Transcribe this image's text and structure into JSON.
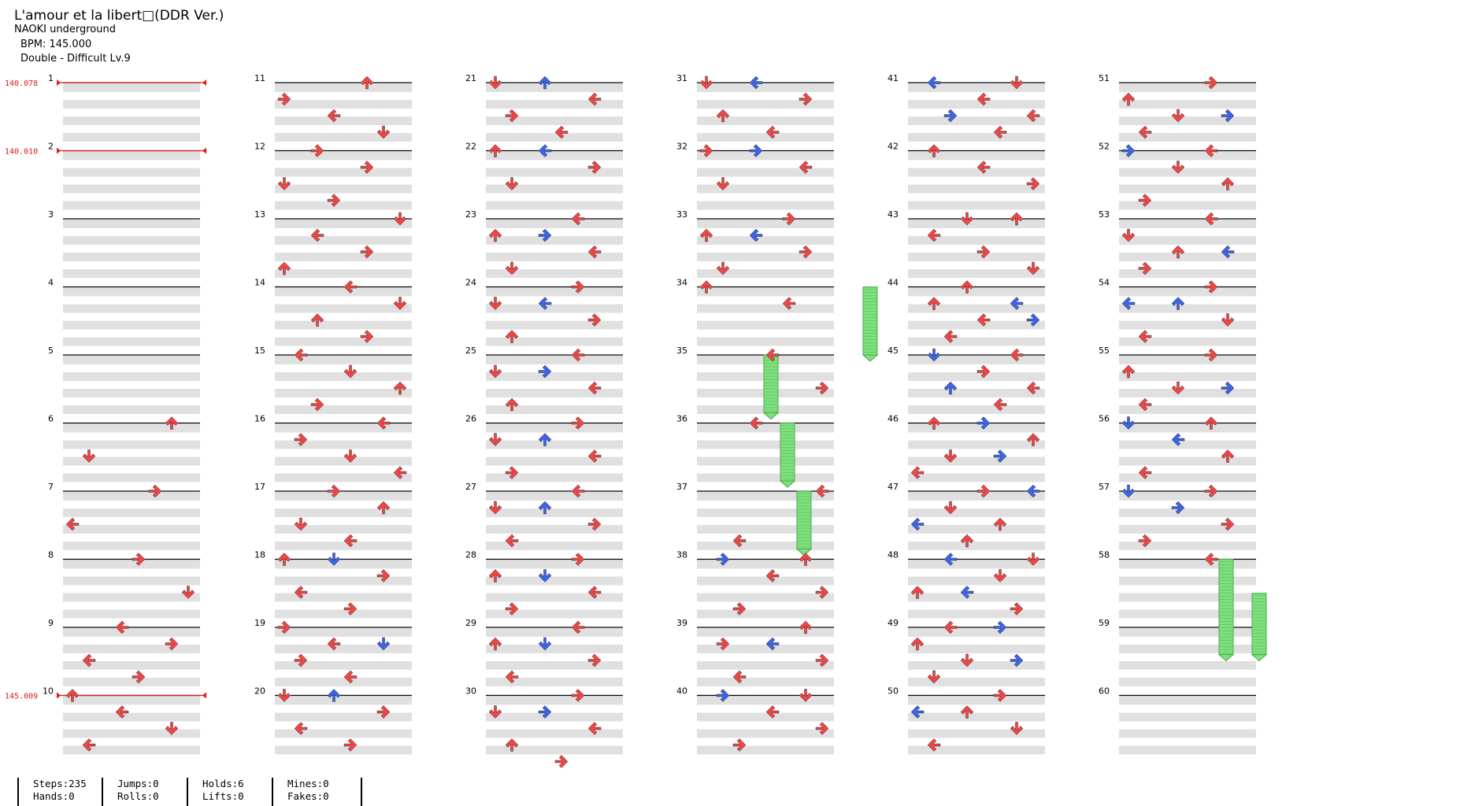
{
  "header": {
    "title": "L'amour et la libert□(DDR Ver.)",
    "artist": "NAOKI underground",
    "bpm_line": "BPM: 145.000",
    "chart_line": "Double - Difficult  Lv.9"
  },
  "bpm_changes": [
    {
      "measure": 1,
      "label": "140.078"
    },
    {
      "measure": 2,
      "label": "140.010"
    },
    {
      "measure": 10,
      "label": "145.009"
    }
  ],
  "measures": [
    1,
    2,
    3,
    4,
    5,
    6,
    7,
    8,
    9,
    10,
    11,
    12,
    13,
    14,
    15,
    16,
    17,
    18,
    19,
    20,
    21,
    22,
    23,
    24,
    25,
    26,
    27,
    28,
    29,
    30,
    31,
    32,
    33,
    34,
    35,
    36,
    37,
    38,
    39,
    40,
    41,
    42,
    43,
    44,
    45,
    46,
    47,
    48,
    49,
    50,
    51,
    52,
    53,
    54,
    55,
    56,
    57,
    58,
    59,
    60
  ],
  "colors": {
    "quarter": "#f04545",
    "eighth": "#3c64e6",
    "hold": "#7fe07f",
    "bpm": "#e01818"
  },
  "notes": [
    [
      6,
      0,
      "U",
      "r"
    ],
    [
      6,
      2,
      "D",
      "r"
    ],
    [
      7,
      0,
      "R",
      "r"
    ],
    [
      7,
      2,
      "L",
      "r"
    ],
    [
      8,
      0,
      "R",
      "r"
    ],
    [
      8,
      2,
      "D",
      "r"
    ],
    [
      9,
      0,
      "L",
      "r"
    ],
    [
      9,
      1,
      "R",
      "r"
    ],
    [
      9,
      2,
      "L",
      "r"
    ],
    [
      9,
      3,
      "R",
      "r"
    ],
    [
      10,
      0,
      "U",
      "r"
    ],
    [
      10,
      1,
      "L",
      "r"
    ],
    [
      10,
      2,
      "D",
      "r"
    ],
    [
      10,
      3,
      "L",
      "r"
    ],
    [
      11,
      0,
      "U",
      "r"
    ],
    [
      11,
      1,
      "R",
      "r"
    ],
    [
      11,
      2,
      "L",
      "r"
    ],
    [
      11,
      3,
      "D",
      "r"
    ],
    [
      12,
      0,
      "R",
      "r"
    ],
    [
      12,
      1,
      "R",
      "r"
    ],
    [
      12,
      2,
      "D",
      "r"
    ],
    [
      12,
      3,
      "R",
      "r"
    ],
    [
      13,
      0,
      "D",
      "r"
    ],
    [
      13,
      1,
      "L",
      "r"
    ],
    [
      13,
      2,
      "R",
      "r"
    ],
    [
      13,
      3,
      "U",
      "r"
    ],
    [
      14,
      0,
      "L",
      "r"
    ],
    [
      14,
      1,
      "D",
      "r"
    ],
    [
      14,
      2,
      "U",
      "r"
    ],
    [
      14,
      3,
      "R",
      "r"
    ],
    [
      15,
      0,
      "L",
      "r"
    ],
    [
      15,
      1,
      "D",
      "r"
    ],
    [
      15,
      2,
      "U",
      "r"
    ],
    [
      15,
      3,
      "R",
      "r"
    ],
    [
      16,
      0,
      "L",
      "r"
    ],
    [
      16,
      1,
      "R",
      "r"
    ],
    [
      16,
      2,
      "D",
      "r"
    ],
    [
      16,
      3,
      "L",
      "r"
    ],
    [
      17,
      0,
      "R",
      "r"
    ],
    [
      17,
      1,
      "U",
      "r"
    ],
    [
      17,
      2,
      "D",
      "r"
    ],
    [
      17,
      3,
      "L",
      "r"
    ],
    [
      18,
      0,
      "U",
      "r"
    ],
    [
      18,
      0,
      "D",
      "b"
    ],
    [
      18,
      1,
      "R",
      "r"
    ],
    [
      18,
      2,
      "L",
      "r"
    ],
    [
      18,
      3,
      "R",
      "r"
    ],
    [
      19,
      0,
      "R",
      "r"
    ],
    [
      19,
      1,
      "L",
      "r"
    ],
    [
      19,
      1,
      "D",
      "b"
    ],
    [
      19,
      2,
      "R",
      "r"
    ],
    [
      19,
      3,
      "L",
      "r"
    ],
    [
      20,
      0,
      "D",
      "r"
    ],
    [
      20,
      0,
      "U",
      "b"
    ],
    [
      20,
      1,
      "R",
      "r"
    ],
    [
      20,
      2,
      "L",
      "r"
    ],
    [
      20,
      3,
      "R",
      "r"
    ],
    [
      21,
      0,
      "D",
      "r"
    ],
    [
      21,
      0,
      "U",
      "b"
    ],
    [
      21,
      1,
      "L",
      "r"
    ],
    [
      21,
      2,
      "R",
      "r"
    ],
    [
      21,
      3,
      "L",
      "r"
    ],
    [
      22,
      0,
      "U",
      "r"
    ],
    [
      22,
      0,
      "L",
      "b"
    ],
    [
      22,
      1,
      "R",
      "r"
    ],
    [
      22,
      2,
      "D",
      "r"
    ],
    [
      23,
      0,
      "L",
      "r"
    ],
    [
      23,
      1,
      "U",
      "r"
    ],
    [
      23,
      1,
      "R",
      "b"
    ],
    [
      23,
      2,
      "L",
      "r"
    ],
    [
      23,
      3,
      "D",
      "r"
    ],
    [
      24,
      0,
      "R",
      "r"
    ],
    [
      24,
      1,
      "D",
      "r"
    ],
    [
      24,
      1,
      "L",
      "b"
    ],
    [
      24,
      2,
      "R",
      "r"
    ],
    [
      24,
      3,
      "U",
      "r"
    ],
    [
      25,
      0,
      "L",
      "r"
    ],
    [
      25,
      1,
      "D",
      "r"
    ],
    [
      25,
      1,
      "R",
      "b"
    ],
    [
      25,
      2,
      "L",
      "r"
    ],
    [
      25,
      3,
      "U",
      "r"
    ],
    [
      26,
      0,
      "R",
      "r"
    ],
    [
      26,
      1,
      "D",
      "r"
    ],
    [
      26,
      1,
      "U",
      "b"
    ],
    [
      26,
      2,
      "L",
      "r"
    ],
    [
      26,
      3,
      "R",
      "r"
    ],
    [
      27,
      0,
      "L",
      "r"
    ],
    [
      27,
      1,
      "D",
      "r"
    ],
    [
      27,
      1,
      "U",
      "b"
    ],
    [
      27,
      2,
      "R",
      "r"
    ],
    [
      27,
      3,
      "L",
      "r"
    ],
    [
      28,
      0,
      "R",
      "r"
    ],
    [
      28,
      1,
      "U",
      "r"
    ],
    [
      28,
      1,
      "D",
      "b"
    ],
    [
      28,
      2,
      "L",
      "r"
    ],
    [
      28,
      3,
      "R",
      "r"
    ],
    [
      29,
      0,
      "L",
      "r"
    ],
    [
      29,
      1,
      "U",
      "r"
    ],
    [
      29,
      1,
      "D",
      "b"
    ],
    [
      29,
      2,
      "R",
      "r"
    ],
    [
      29,
      3,
      "L",
      "r"
    ],
    [
      30,
      0,
      "R",
      "r"
    ],
    [
      30,
      1,
      "D",
      "r"
    ],
    [
      30,
      1,
      "R",
      "b"
    ],
    [
      30,
      2,
      "L",
      "r"
    ],
    [
      30,
      3,
      "U",
      "r"
    ],
    [
      30,
      4,
      "R",
      "r"
    ],
    [
      31,
      0,
      "D",
      "r"
    ],
    [
      31,
      0,
      "L",
      "b"
    ],
    [
      31,
      1,
      "R",
      "r"
    ],
    [
      31,
      2,
      "U",
      "r"
    ],
    [
      31,
      3,
      "L",
      "r"
    ],
    [
      32,
      0,
      "R",
      "r"
    ],
    [
      32,
      0,
      "R",
      "b"
    ],
    [
      32,
      1,
      "L",
      "r"
    ],
    [
      32,
      2,
      "D",
      "r"
    ],
    [
      33,
      0,
      "R",
      "r"
    ],
    [
      33,
      1,
      "U",
      "r"
    ],
    [
      33,
      1,
      "L",
      "b"
    ],
    [
      33,
      2,
      "R",
      "r"
    ],
    [
      33,
      3,
      "D",
      "r"
    ],
    [
      34,
      1,
      "L",
      "r"
    ],
    [
      34,
      0,
      "U",
      "r"
    ],
    [
      35,
      0,
      "L",
      "r"
    ],
    [
      35,
      2,
      "R",
      "r"
    ],
    [
      36,
      0,
      "L",
      "r"
    ],
    [
      37,
      0,
      "L",
      "r"
    ],
    [
      37,
      3,
      "L",
      "r"
    ],
    [
      38,
      0,
      "U",
      "r"
    ],
    [
      38,
      0,
      "R",
      "b"
    ],
    [
      38,
      1,
      "L",
      "r"
    ],
    [
      38,
      2,
      "R",
      "r"
    ],
    [
      38,
      3,
      "R",
      "r"
    ],
    [
      39,
      0,
      "U",
      "r"
    ],
    [
      39,
      1,
      "R",
      "r"
    ],
    [
      39,
      1,
      "L",
      "b"
    ],
    [
      39,
      2,
      "R",
      "r"
    ],
    [
      39,
      3,
      "L",
      "r"
    ],
    [
      40,
      0,
      "D",
      "r"
    ],
    [
      40,
      0,
      "R",
      "b"
    ],
    [
      40,
      1,
      "L",
      "r"
    ],
    [
      40,
      2,
      "R",
      "r"
    ],
    [
      40,
      3,
      "R",
      "r"
    ],
    [
      41,
      0,
      "D",
      "r"
    ],
    [
      41,
      0,
      "L",
      "b"
    ],
    [
      41,
      1,
      "L",
      "r"
    ],
    [
      41,
      2,
      "L",
      "r"
    ],
    [
      41,
      2,
      "R",
      "b"
    ],
    [
      41,
      3,
      "L",
      "r"
    ],
    [
      42,
      0,
      "U",
      "r"
    ],
    [
      42,
      1,
      "L",
      "r"
    ],
    [
      42,
      2,
      "R",
      "r"
    ],
    [
      43,
      0,
      "D",
      "r"
    ],
    [
      43,
      0,
      "U",
      "r"
    ],
    [
      43,
      1,
      "L",
      "r"
    ],
    [
      43,
      2,
      "R",
      "r"
    ],
    [
      43,
      3,
      "D",
      "r"
    ],
    [
      44,
      0,
      "U",
      "r"
    ],
    [
      44,
      1,
      "L",
      "b"
    ],
    [
      44,
      1,
      "U",
      "r"
    ],
    [
      44,
      2,
      "L",
      "r"
    ],
    [
      44,
      2,
      "R",
      "b"
    ],
    [
      44,
      3,
      "L",
      "r"
    ],
    [
      45,
      0,
      "L",
      "r"
    ],
    [
      45,
      0,
      "D",
      "b"
    ],
    [
      45,
      1,
      "R",
      "r"
    ],
    [
      45,
      2,
      "L",
      "r"
    ],
    [
      45,
      2,
      "U",
      "b"
    ],
    [
      45,
      3,
      "L",
      "r"
    ],
    [
      46,
      0,
      "U",
      "r"
    ],
    [
      46,
      0,
      "R",
      "b"
    ],
    [
      46,
      1,
      "U",
      "r"
    ],
    [
      46,
      2,
      "D",
      "r"
    ],
    [
      46,
      2,
      "R",
      "b"
    ],
    [
      46,
      3,
      "L",
      "r"
    ],
    [
      47,
      0,
      "R",
      "r"
    ],
    [
      47,
      0,
      "L",
      "b"
    ],
    [
      47,
      1,
      "D",
      "r"
    ],
    [
      47,
      2,
      "U",
      "r"
    ],
    [
      47,
      2,
      "L",
      "b"
    ],
    [
      47,
      3,
      "U",
      "r"
    ],
    [
      48,
      0,
      "D",
      "r"
    ],
    [
      48,
      0,
      "L",
      "b"
    ],
    [
      48,
      1,
      "D",
      "r"
    ],
    [
      48,
      2,
      "U",
      "r"
    ],
    [
      48,
      2,
      "L",
      "b"
    ],
    [
      48,
      3,
      "R",
      "r"
    ],
    [
      49,
      0,
      "L",
      "r"
    ],
    [
      49,
      0,
      "R",
      "b"
    ],
    [
      49,
      1,
      "U",
      "r"
    ],
    [
      49,
      2,
      "D",
      "r"
    ],
    [
      49,
      2,
      "R",
      "b"
    ],
    [
      49,
      3,
      "D",
      "r"
    ],
    [
      50,
      0,
      "R",
      "r"
    ],
    [
      50,
      1,
      "L",
      "b"
    ],
    [
      50,
      1,
      "U",
      "r"
    ],
    [
      50,
      2,
      "D",
      "r"
    ],
    [
      50,
      3,
      "L",
      "r"
    ],
    [
      51,
      0,
      "R",
      "r"
    ],
    [
      51,
      1,
      "U",
      "r"
    ],
    [
      51,
      2,
      "D",
      "r"
    ],
    [
      51,
      2,
      "R",
      "b"
    ],
    [
      51,
      3,
      "L",
      "r"
    ],
    [
      52,
      0,
      "L",
      "r"
    ],
    [
      52,
      0,
      "R",
      "b"
    ],
    [
      52,
      1,
      "D",
      "r"
    ],
    [
      52,
      2,
      "U",
      "r"
    ],
    [
      52,
      3,
      "R",
      "r"
    ],
    [
      53,
      0,
      "L",
      "r"
    ],
    [
      53,
      1,
      "D",
      "r"
    ],
    [
      53,
      2,
      "U",
      "r"
    ],
    [
      53,
      2,
      "L",
      "b"
    ],
    [
      53,
      3,
      "R",
      "r"
    ],
    [
      54,
      0,
      "R",
      "r"
    ],
    [
      54,
      1,
      "L",
      "b"
    ],
    [
      54,
      1,
      "U",
      "b"
    ],
    [
      54,
      2,
      "D",
      "r"
    ],
    [
      54,
      3,
      "L",
      "r"
    ],
    [
      55,
      0,
      "R",
      "r"
    ],
    [
      55,
      1,
      "U",
      "r"
    ],
    [
      55,
      2,
      "D",
      "r"
    ],
    [
      55,
      2,
      "R",
      "b"
    ],
    [
      55,
      3,
      "L",
      "r"
    ],
    [
      56,
      0,
      "U",
      "r"
    ],
    [
      56,
      0,
      "D",
      "b"
    ],
    [
      56,
      1,
      "L",
      "b"
    ],
    [
      56,
      2,
      "U",
      "r"
    ],
    [
      56,
      3,
      "L",
      "r"
    ],
    [
      57,
      0,
      "R",
      "r"
    ],
    [
      57,
      0,
      "D",
      "b"
    ],
    [
      57,
      1,
      "R",
      "b"
    ],
    [
      57,
      2,
      "R",
      "r"
    ],
    [
      57,
      3,
      "R",
      "r"
    ],
    [
      58,
      0,
      "L",
      "r"
    ]
  ],
  "holds": [
    [
      34,
      0,
      1.0
    ],
    [
      35,
      0,
      0.85
    ],
    [
      36,
      0,
      0.85
    ],
    [
      37,
      0,
      0.85
    ],
    [
      58,
      0,
      1.4
    ],
    [
      58,
      0.5,
      0.9
    ]
  ],
  "stats": {
    "col1": "Steps:235\nHands:0",
    "col2": "Jumps:0\nRolls:0",
    "col3": "Holds:6\nLifts:0",
    "col4": "Mines:0\nFakes:0"
  }
}
